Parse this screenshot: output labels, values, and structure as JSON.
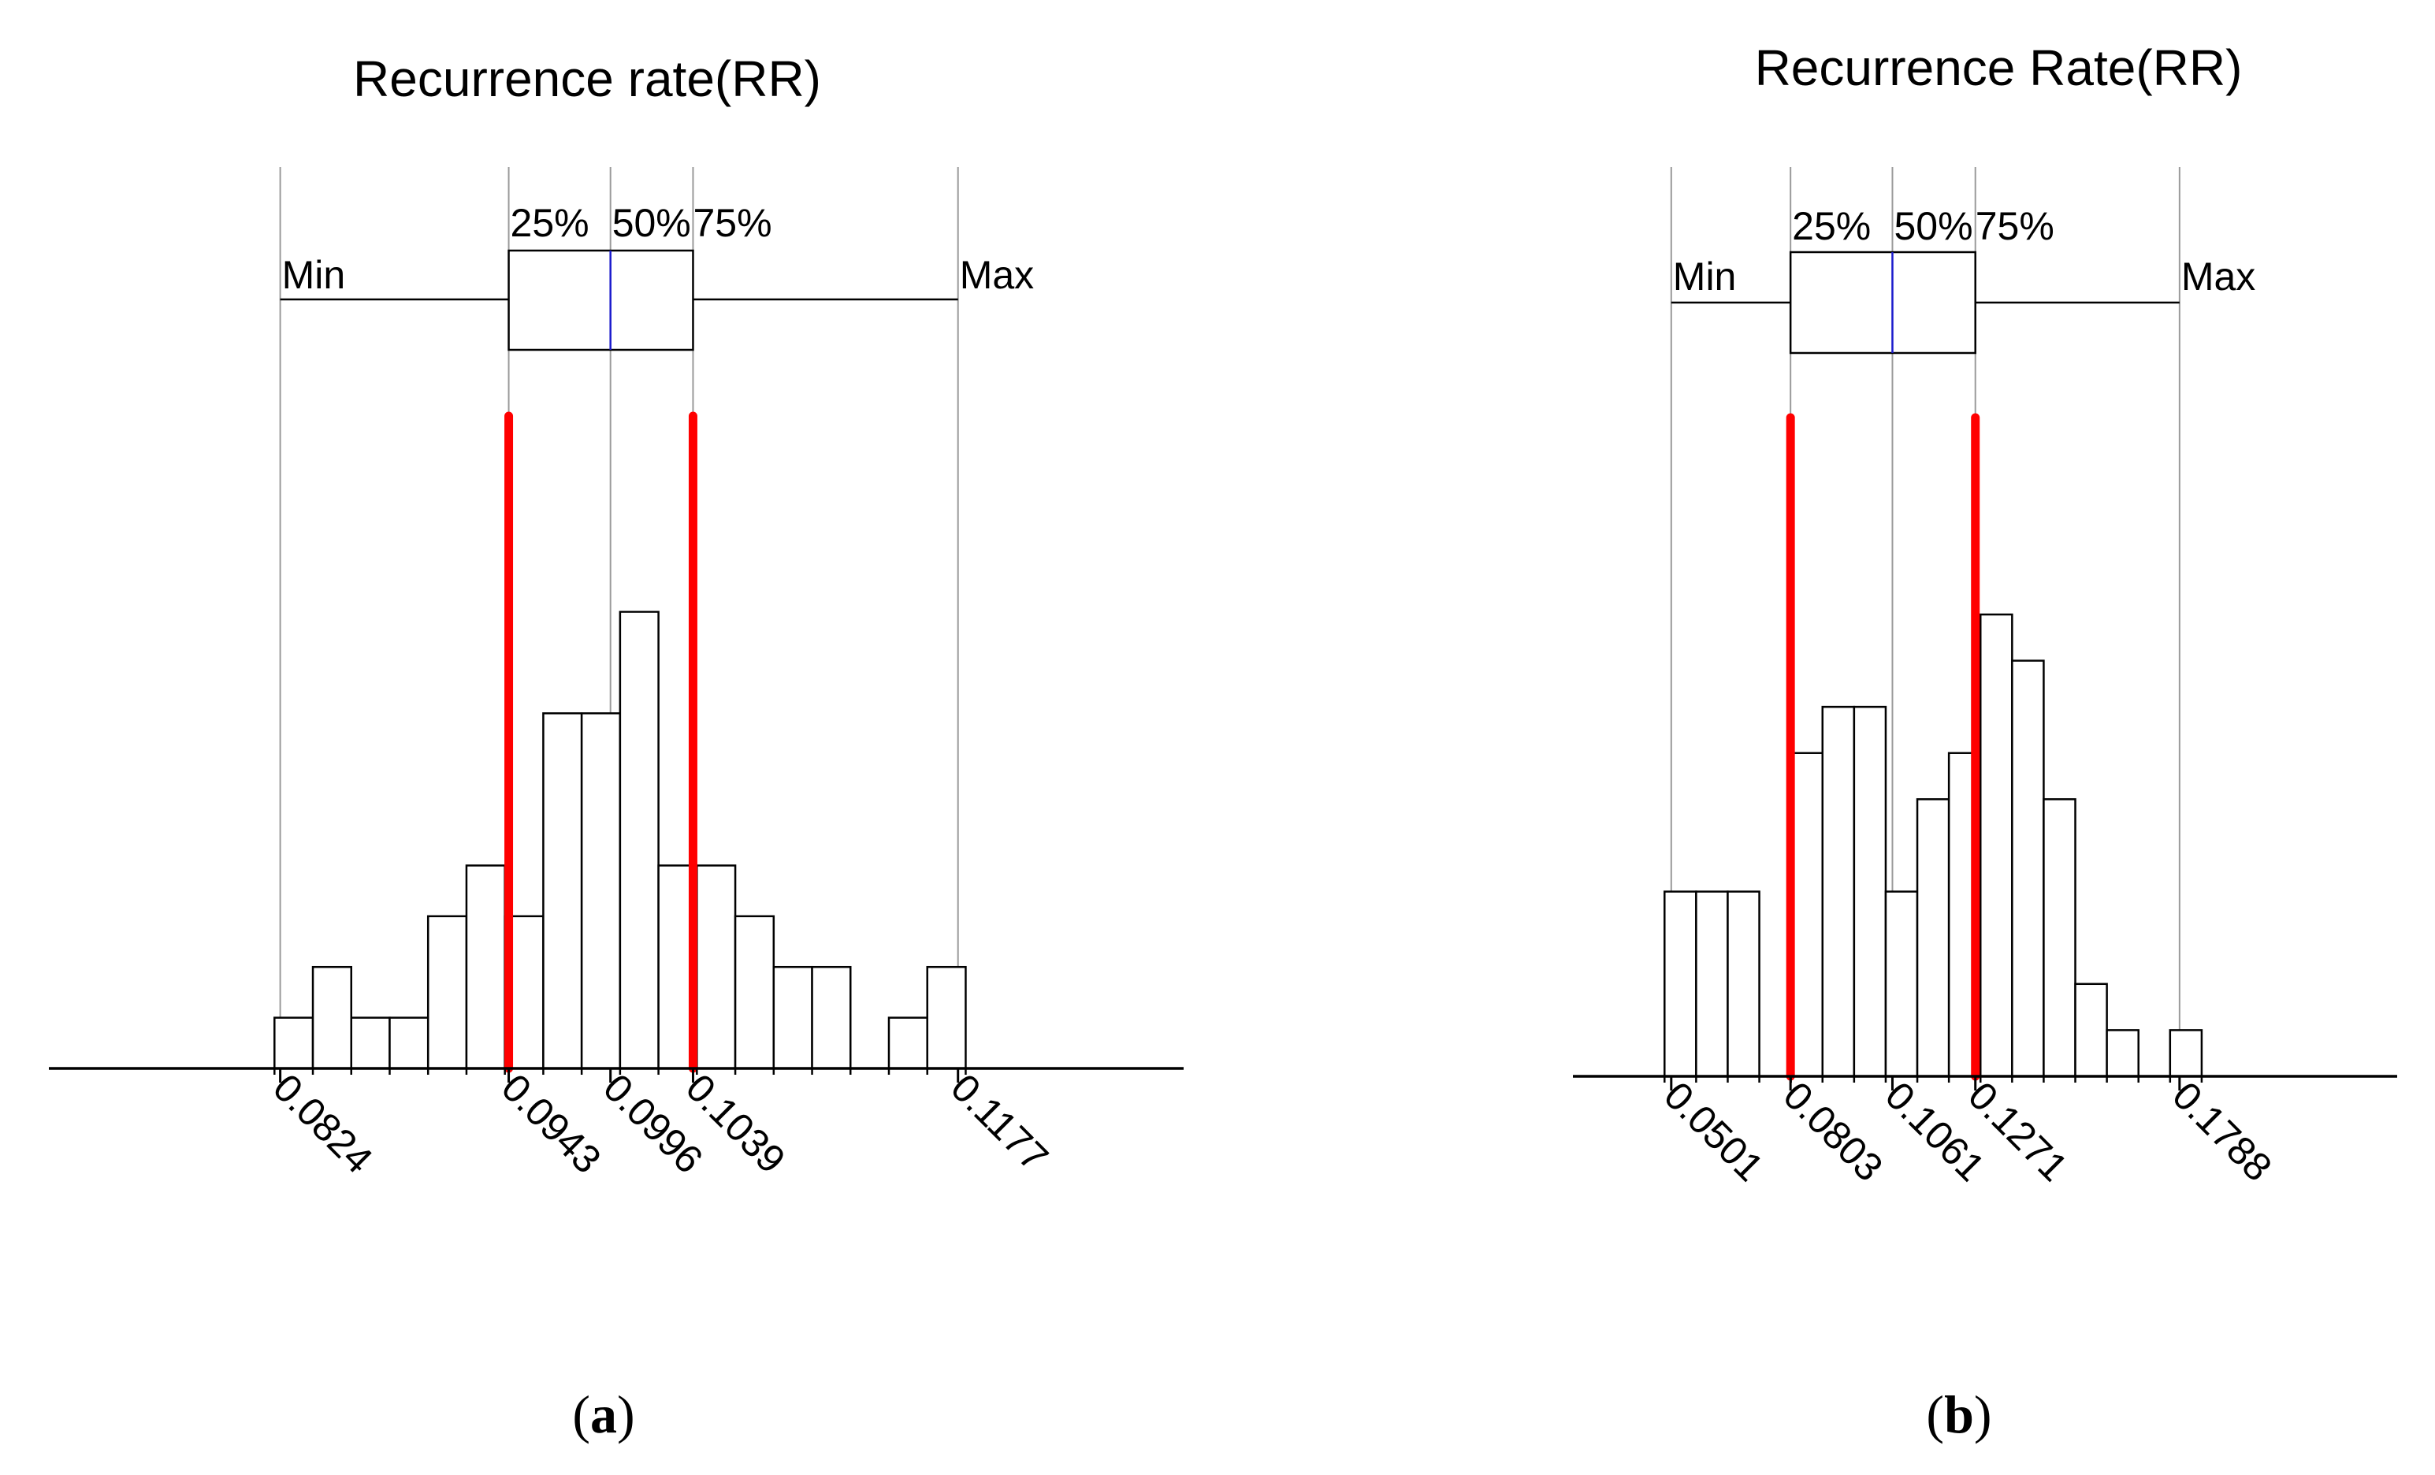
{
  "chart_data": [
    {
      "type": "histogram",
      "panel": "a",
      "title": "Recurrence rate(RR)",
      "caption_letter": "a",
      "box_labels": {
        "min": "Min",
        "q1": "25%",
        "median": "50%",
        "q3": "75%",
        "max": "Max"
      },
      "stats": {
        "min": 0.0824,
        "q1": 0.0943,
        "median": 0.0996,
        "q3": 0.1039,
        "max": 0.1177
      },
      "x_ticks": [
        "0.0824",
        "0.0943",
        "0.0996",
        "0.1039",
        "0.1177"
      ],
      "x_range": [
        0.07035,
        0.12945
      ],
      "bins": {
        "start": 0.0821,
        "width": 0.002,
        "counts": [
          1,
          2,
          1,
          1,
          3,
          4,
          3,
          7,
          7,
          9,
          4,
          4,
          3,
          2,
          2,
          0,
          1,
          2
        ]
      },
      "y_max": 9.8,
      "red_lines": [
        0.0943,
        0.1039
      ]
    },
    {
      "type": "histogram",
      "panel": "b",
      "title": "Recurrence Rate(RR)",
      "caption_letter": "b",
      "box_labels": {
        "min": "Min",
        "q1": "25%",
        "median": "50%",
        "q3": "75%",
        "max": "Max"
      },
      "stats": {
        "min": 0.0501,
        "q1": 0.0803,
        "median": 0.1061,
        "q3": 0.1271,
        "max": 0.1788
      },
      "x_ticks": [
        "0.0501",
        "0.0803",
        "0.1061",
        "0.1271",
        "0.1788"
      ],
      "x_range": [
        0.0252,
        0.2339
      ],
      "bins": {
        "start": 0.0484,
        "width": 0.008,
        "counts": [
          4,
          4,
          4,
          0,
          7,
          8,
          8,
          4,
          6,
          7,
          10,
          9,
          6,
          2,
          1,
          0,
          1
        ]
      },
      "y_max": 10.8,
      "red_lines": [
        0.0803,
        0.1271
      ]
    }
  ]
}
